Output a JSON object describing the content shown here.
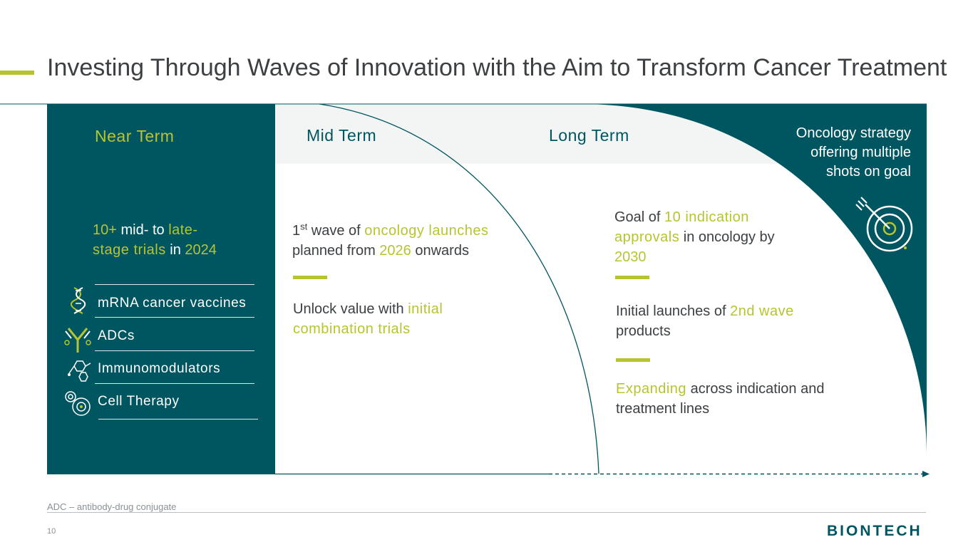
{
  "title": "Investing Through Waves of Innovation with the Aim to Transform Cancer Treatment",
  "colors": {
    "teal": "#005660",
    "accent": "#b8c42f",
    "light": "#f3f5f5",
    "text": "#3c4043"
  },
  "near_term": {
    "header": "Near Term",
    "stat": {
      "p1": "10+",
      "p2": " mid- to ",
      "p3": "late-",
      "p4": "stage trials",
      "p5": " in ",
      "p6": "2024"
    },
    "modalities": [
      {
        "label": "mRNA cancer vaccines",
        "icon": "mrna-helix-icon"
      },
      {
        "label": "ADCs",
        "icon": "antibody-icon"
      },
      {
        "label": "Immunomodulators",
        "icon": "molecule-icon"
      },
      {
        "label": "Cell Therapy",
        "icon": "cell-icon"
      }
    ]
  },
  "mid_term": {
    "header": "Mid Term",
    "wave": {
      "num": "1",
      "sup": "st",
      "p1": " wave of ",
      "p2": "oncology launches",
      "p3": "planned from ",
      "p4": "2026",
      "p5": " onwards"
    },
    "unlock": {
      "p1": "Unlock value with ",
      "p2": "initial combination trials"
    }
  },
  "long_term": {
    "header": "Long Term",
    "goal": {
      "p1": "Goal of ",
      "p2": "10 indication approvals",
      "p3": " in oncology by ",
      "p4": "2030"
    },
    "launches": {
      "p1": "Initial launches of ",
      "p2": "2nd wave",
      "p3": " products"
    },
    "expanding": {
      "p1": "Expanding",
      "p2": " across indication and treatment lines"
    }
  },
  "strategy": {
    "line1": "Oncology strategy",
    "line2": "offering multiple",
    "line3": "shots on goal",
    "icon": "target-icon"
  },
  "footnote": "ADC – antibody-drug conjugate",
  "page_number": "10",
  "logo": "BIONTECH"
}
